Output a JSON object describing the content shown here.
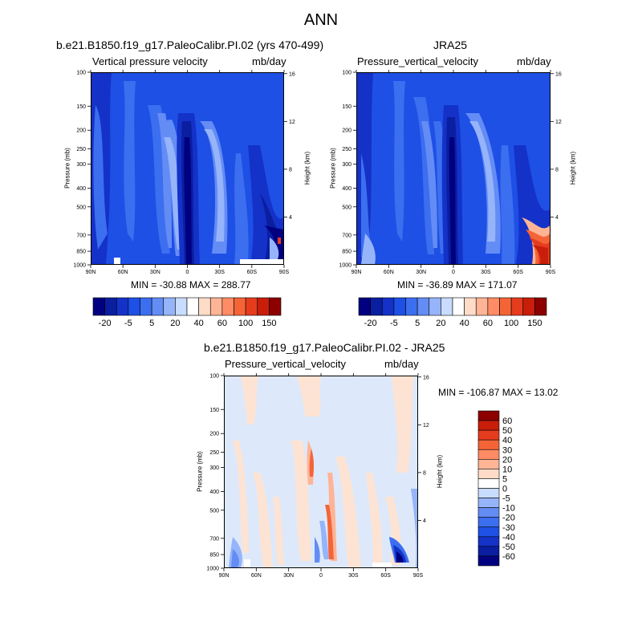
{
  "figure_title": "ANN",
  "panels": {
    "model": {
      "case": "b.e21.B1850.f19_g17.PaleoCalibr.PI.02 (yrs 470-499)",
      "variable": "Vertical pressure velocity",
      "units": "mb/day",
      "stats": "MIN = -30.88  MAX = 288.77"
    },
    "obs": {
      "case": "JRA25",
      "variable": "Pressure_vertical_velocity",
      "units": "mb/day",
      "stats": "MIN = -36.89  MAX = 171.07"
    },
    "diff": {
      "case": "b.e21.B1850.f19_g17.PaleoCalibr.PI.02 - JRA25",
      "variable": "Pressure_vertical_velocity",
      "units": "mb/day",
      "stats": "MIN = -106.87  MAX =  13.02"
    }
  },
  "axes": {
    "ylabel": "Pressure (mb)",
    "y2label": "Height (km)",
    "pressure_ticks": [
      100,
      150,
      200,
      250,
      300,
      400,
      500,
      700,
      850,
      1000
    ],
    "height_ticks": [
      4,
      8,
      12,
      16
    ],
    "lat_ticks": [
      "90N",
      "60N",
      "30N",
      "0",
      "30S",
      "60S",
      "90S"
    ]
  },
  "colors": {
    "abs_scale": [
      "#000080",
      "#0a1ea0",
      "#1432c8",
      "#1e50e6",
      "#3c6ef0",
      "#648cf5",
      "#96b4fa",
      "#c8dcff",
      "#ffffff",
      "#ffdcc8",
      "#ffb496",
      "#ff8c64",
      "#f56437",
      "#e63c1e",
      "#c81e0a",
      "#8c0000"
    ],
    "abs_labels": [
      "-20",
      "-5",
      "5",
      "20",
      "40",
      "60",
      "100",
      "150"
    ],
    "diff_scale": [
      "#000080",
      "#0a1ea0",
      "#1432c8",
      "#1e50e6",
      "#3c6ef0",
      "#648cf5",
      "#96b4fa",
      "#c8dcff",
      "#ffffff",
      "#ffdcc8",
      "#ffb496",
      "#ff8c64",
      "#f56437",
      "#e63c1e",
      "#c81e0a",
      "#8c0000"
    ],
    "diff_labels": [
      "60",
      "50",
      "40",
      "30",
      "20",
      "10",
      "5",
      "0",
      "-5",
      "-10",
      "-20",
      "-30",
      "-40",
      "-50",
      "-60"
    ]
  },
  "chart_data": [
    {
      "type": "heatmap",
      "title": "b.e21.B1850.f19_g17.PaleoCalibr.PI.02 (yrs 470-499)",
      "xlabel": "",
      "ylabel": "Pressure (mb)",
      "x_ticks": [
        "90N",
        "60N",
        "30N",
        "0",
        "30S",
        "60S",
        "90S"
      ],
      "y_ticks": [
        100,
        150,
        200,
        250,
        300,
        400,
        500,
        700,
        850,
        1000
      ],
      "min": -30.88,
      "max": 288.77
    },
    {
      "type": "heatmap",
      "title": "JRA25",
      "xlabel": "",
      "ylabel": "Pressure (mb)",
      "x_ticks": [
        "90N",
        "60N",
        "30N",
        "0",
        "30S",
        "60S",
        "90S"
      ],
      "y_ticks": [
        100,
        150,
        200,
        250,
        300,
        400,
        500,
        700,
        850,
        1000
      ],
      "min": -36.89,
      "max": 171.07
    },
    {
      "type": "heatmap",
      "title": "b.e21.B1850.f19_g17.PaleoCalibr.PI.02 - JRA25",
      "xlabel": "",
      "ylabel": "Pressure (mb)",
      "x_ticks": [
        "90N",
        "60N",
        "30N",
        "0",
        "30S",
        "60S",
        "90S"
      ],
      "y_ticks": [
        100,
        150,
        200,
        250,
        300,
        400,
        500,
        700,
        850,
        1000
      ],
      "min": -106.87,
      "max": 13.02
    }
  ]
}
